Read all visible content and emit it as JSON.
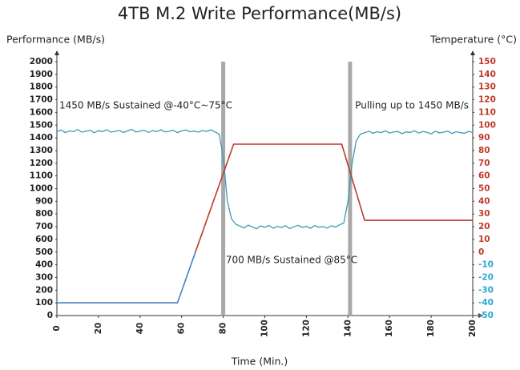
{
  "chart_data": {
    "type": "line",
    "title": "4TB M.2 Write Performance(MB/s)",
    "y_label": "Performance (MB/s)",
    "y2_label": "Temperature (°C)",
    "x_label": "Time (Min.)",
    "annotations": [
      "1450 MB/s Sustained @-40°C~75°C",
      "700 MB/s Sustained @85°C",
      "Pulling up to 1450 MB/s"
    ],
    "xlim": [
      0,
      200
    ],
    "xticks": [
      0,
      20,
      40,
      60,
      80,
      100,
      120,
      140,
      160,
      180,
      200
    ],
    "ylim": [
      0,
      2000
    ],
    "yticks": [
      0,
      100,
      200,
      300,
      400,
      500,
      600,
      700,
      800,
      900,
      1000,
      1100,
      1200,
      1300,
      1400,
      1500,
      1600,
      1700,
      1800,
      1900,
      2000
    ],
    "y2lim": [
      -50,
      150
    ],
    "y2ticks": [
      -50,
      -40,
      -30,
      -20,
      -10,
      0,
      10,
      20,
      30,
      40,
      50,
      60,
      70,
      80,
      90,
      100,
      110,
      120,
      130,
      140,
      150
    ],
    "y2tick_colors": {
      "negative": "#29a8d6",
      "positive": "#c0392b"
    },
    "vlines": {
      "x": [
        80,
        141
      ],
      "color": "#a9a9a9"
    },
    "series": [
      {
        "color": "#3a9ab8",
        "x": [
          0,
          2,
          4,
          6,
          8,
          10,
          12,
          14,
          16,
          18,
          20,
          22,
          24,
          26,
          28,
          30,
          32,
          34,
          36,
          38,
          40,
          42,
          44,
          46,
          48,
          50,
          52,
          54,
          56,
          58,
          60,
          62,
          64,
          66,
          68,
          70,
          72,
          74,
          76,
          78,
          80,
          82,
          84,
          86,
          88,
          90,
          92,
          94,
          96,
          98,
          100,
          102,
          104,
          106,
          108,
          110,
          112,
          114,
          116,
          118,
          120,
          122,
          124,
          126,
          128,
          130,
          132,
          134,
          136,
          138,
          140,
          142,
          144,
          146,
          148,
          150,
          152,
          154,
          156,
          158,
          160,
          162,
          164,
          166,
          168,
          170,
          172,
          174,
          176,
          178,
          180,
          182,
          184,
          186,
          188,
          190,
          192,
          194,
          196,
          198,
          200
        ],
        "values": [
          1450,
          1462,
          1441,
          1455,
          1448,
          1466,
          1444,
          1452,
          1459,
          1440,
          1457,
          1449,
          1463,
          1445,
          1451,
          1458,
          1442,
          1454,
          1467,
          1446,
          1453,
          1460,
          1443,
          1456,
          1449,
          1464,
          1447,
          1452,
          1459,
          1441,
          1455,
          1462,
          1448,
          1453,
          1445,
          1458,
          1450,
          1463,
          1447,
          1430,
          1250,
          900,
          760,
          720,
          705,
          690,
          712,
          698,
          684,
          706,
          695,
          710,
          688,
          702,
          693,
          708,
          685,
          699,
          711,
          694,
          703,
          687,
          709,
          696,
          701,
          689,
          707,
          697,
          715,
          730,
          900,
          1200,
          1380,
          1430,
          1440,
          1452,
          1436,
          1448,
          1441,
          1455,
          1438,
          1446,
          1450,
          1433,
          1447,
          1442,
          1456,
          1437,
          1449,
          1444,
          1430,
          1451,
          1439,
          1445,
          1453,
          1434,
          1448,
          1441,
          1436,
          1450,
          1443
        ]
      },
      {
        "axis": "y2",
        "color": "#c0392b",
        "negative_color": "#4a7fc1",
        "x": [
          0,
          58,
          85,
          137,
          148,
          200
        ],
        "values": [
          -40,
          -40,
          85,
          85,
          25,
          25
        ]
      }
    ]
  }
}
